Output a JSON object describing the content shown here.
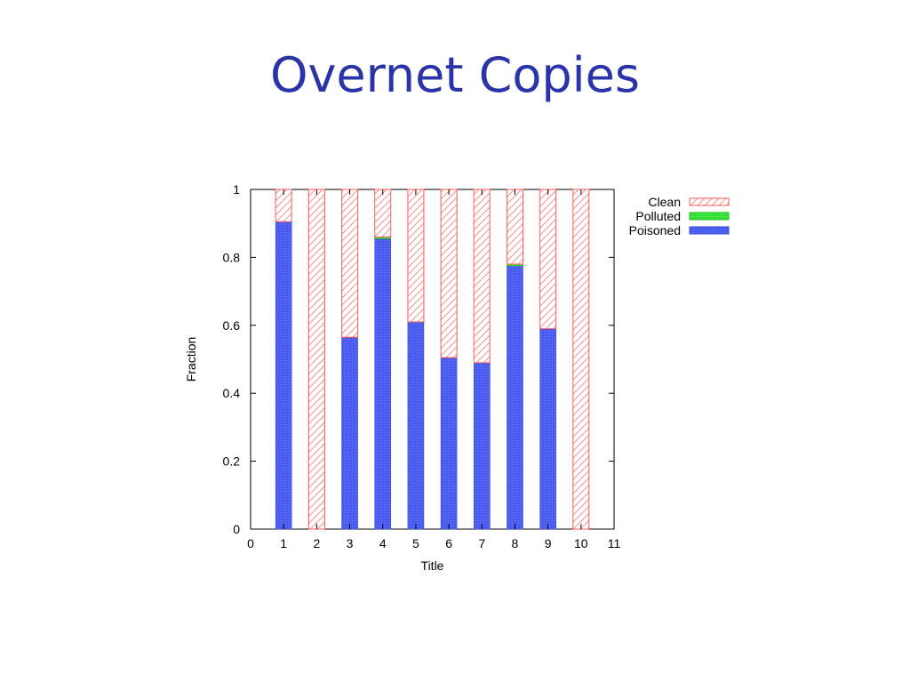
{
  "slide": {
    "title": "Overnet Copies"
  },
  "chart_data": {
    "type": "bar",
    "stacked": true,
    "x": [
      1,
      2,
      3,
      4,
      5,
      6,
      7,
      8,
      9,
      10
    ],
    "xlim": [
      0,
      11
    ],
    "xticks": [
      "0",
      "1",
      "2",
      "3",
      "4",
      "5",
      "6",
      "7",
      "8",
      "9",
      "10",
      "11"
    ],
    "ylim": [
      0,
      1
    ],
    "yticks": [
      "0",
      "0.2",
      "0.4",
      "0.6",
      "0.8",
      "1"
    ],
    "xlabel": "Title",
    "ylabel": "Fraction",
    "legend_position": "top-right outside",
    "series": [
      {
        "name": "Poisoned",
        "color": "#4a5cf0",
        "values": [
          0.905,
          0.0,
          0.565,
          0.855,
          0.61,
          0.505,
          0.49,
          0.775,
          0.59,
          0.0
        ]
      },
      {
        "name": "Polluted",
        "color": "#33e033",
        "values": [
          0.0,
          0.0,
          0.0,
          0.005,
          0.0,
          0.0,
          0.0,
          0.005,
          0.0,
          0.0
        ]
      },
      {
        "name": "Clean",
        "color": "#ff5a5a",
        "values": [
          0.095,
          1.0,
          0.435,
          0.14,
          0.39,
          0.495,
          0.51,
          0.22,
          0.41,
          1.0
        ]
      }
    ],
    "legend": [
      "Clean",
      "Polluted",
      "Poisoned"
    ]
  }
}
